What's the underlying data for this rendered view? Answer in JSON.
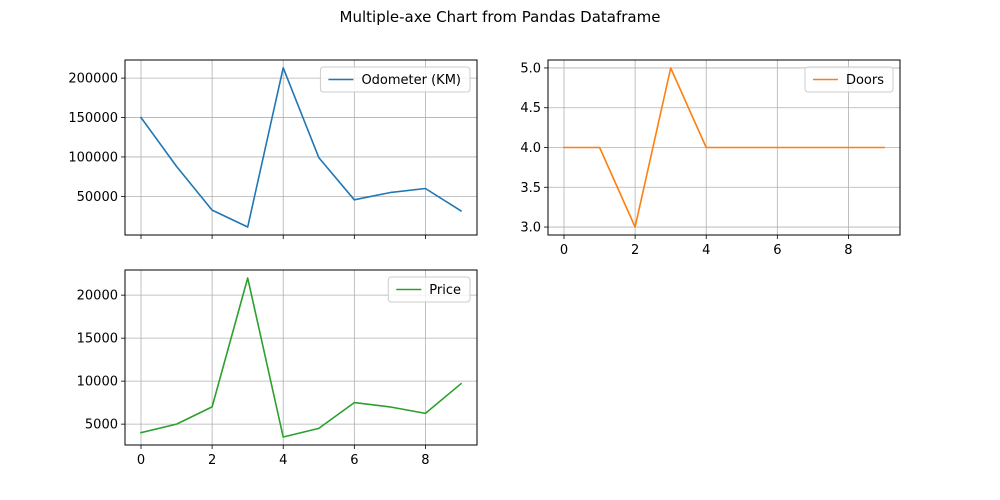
{
  "figure": {
    "title": "Multiple-axe Chart from Pandas Dataframe"
  },
  "chart_data": [
    {
      "type": "line",
      "x": [
        0,
        1,
        2,
        3,
        4,
        5,
        6,
        7,
        8,
        9
      ],
      "series": [
        {
          "name": "Odometer (KM)",
          "color": "#1f77b4",
          "values": [
            150043,
            87899,
            32549,
            11179,
            213095,
            99213,
            45698,
            54738,
            60000,
            31600
          ]
        }
      ],
      "xlim": [
        -0.45,
        9.45
      ],
      "ylim": [
        1000,
        223000
      ],
      "xticks": [],
      "yticks": [
        50000,
        100000,
        150000,
        200000
      ],
      "xgrid_at": [
        0,
        2,
        4,
        6,
        8
      ],
      "grid": true,
      "legend": "upper right"
    },
    {
      "type": "line",
      "x": [
        0,
        1,
        2,
        3,
        4,
        5,
        6,
        7,
        8,
        9
      ],
      "series": [
        {
          "name": "Doors",
          "color": "#ff7f0e",
          "values": [
            4,
            4,
            3,
            5,
            4,
            4,
            4,
            4,
            4,
            4
          ]
        }
      ],
      "xlim": [
        -0.45,
        9.45
      ],
      "ylim": [
        2.9,
        5.1
      ],
      "xticks": [
        0,
        2,
        4,
        6,
        8
      ],
      "yticks": [
        3.0,
        3.5,
        4.0,
        4.5,
        5.0
      ],
      "ytick_labels": [
        "3.0",
        "3.5",
        "4.0",
        "4.5",
        "5.0"
      ],
      "grid": true,
      "legend": "upper right"
    },
    {
      "type": "line",
      "x": [
        0,
        1,
        2,
        3,
        4,
        5,
        6,
        7,
        8,
        9
      ],
      "series": [
        {
          "name": "Price",
          "color": "#2ca02c",
          "values": [
            4000,
            5000,
            7000,
            22000,
            3500,
            4500,
            7500,
            7000,
            6250,
            9700
          ]
        }
      ],
      "xlim": [
        -0.45,
        9.45
      ],
      "ylim": [
        2575,
        22925
      ],
      "xticks": [
        0,
        2,
        4,
        6,
        8
      ],
      "yticks": [
        5000,
        10000,
        15000,
        20000
      ],
      "grid": true,
      "legend": "upper right"
    }
  ]
}
